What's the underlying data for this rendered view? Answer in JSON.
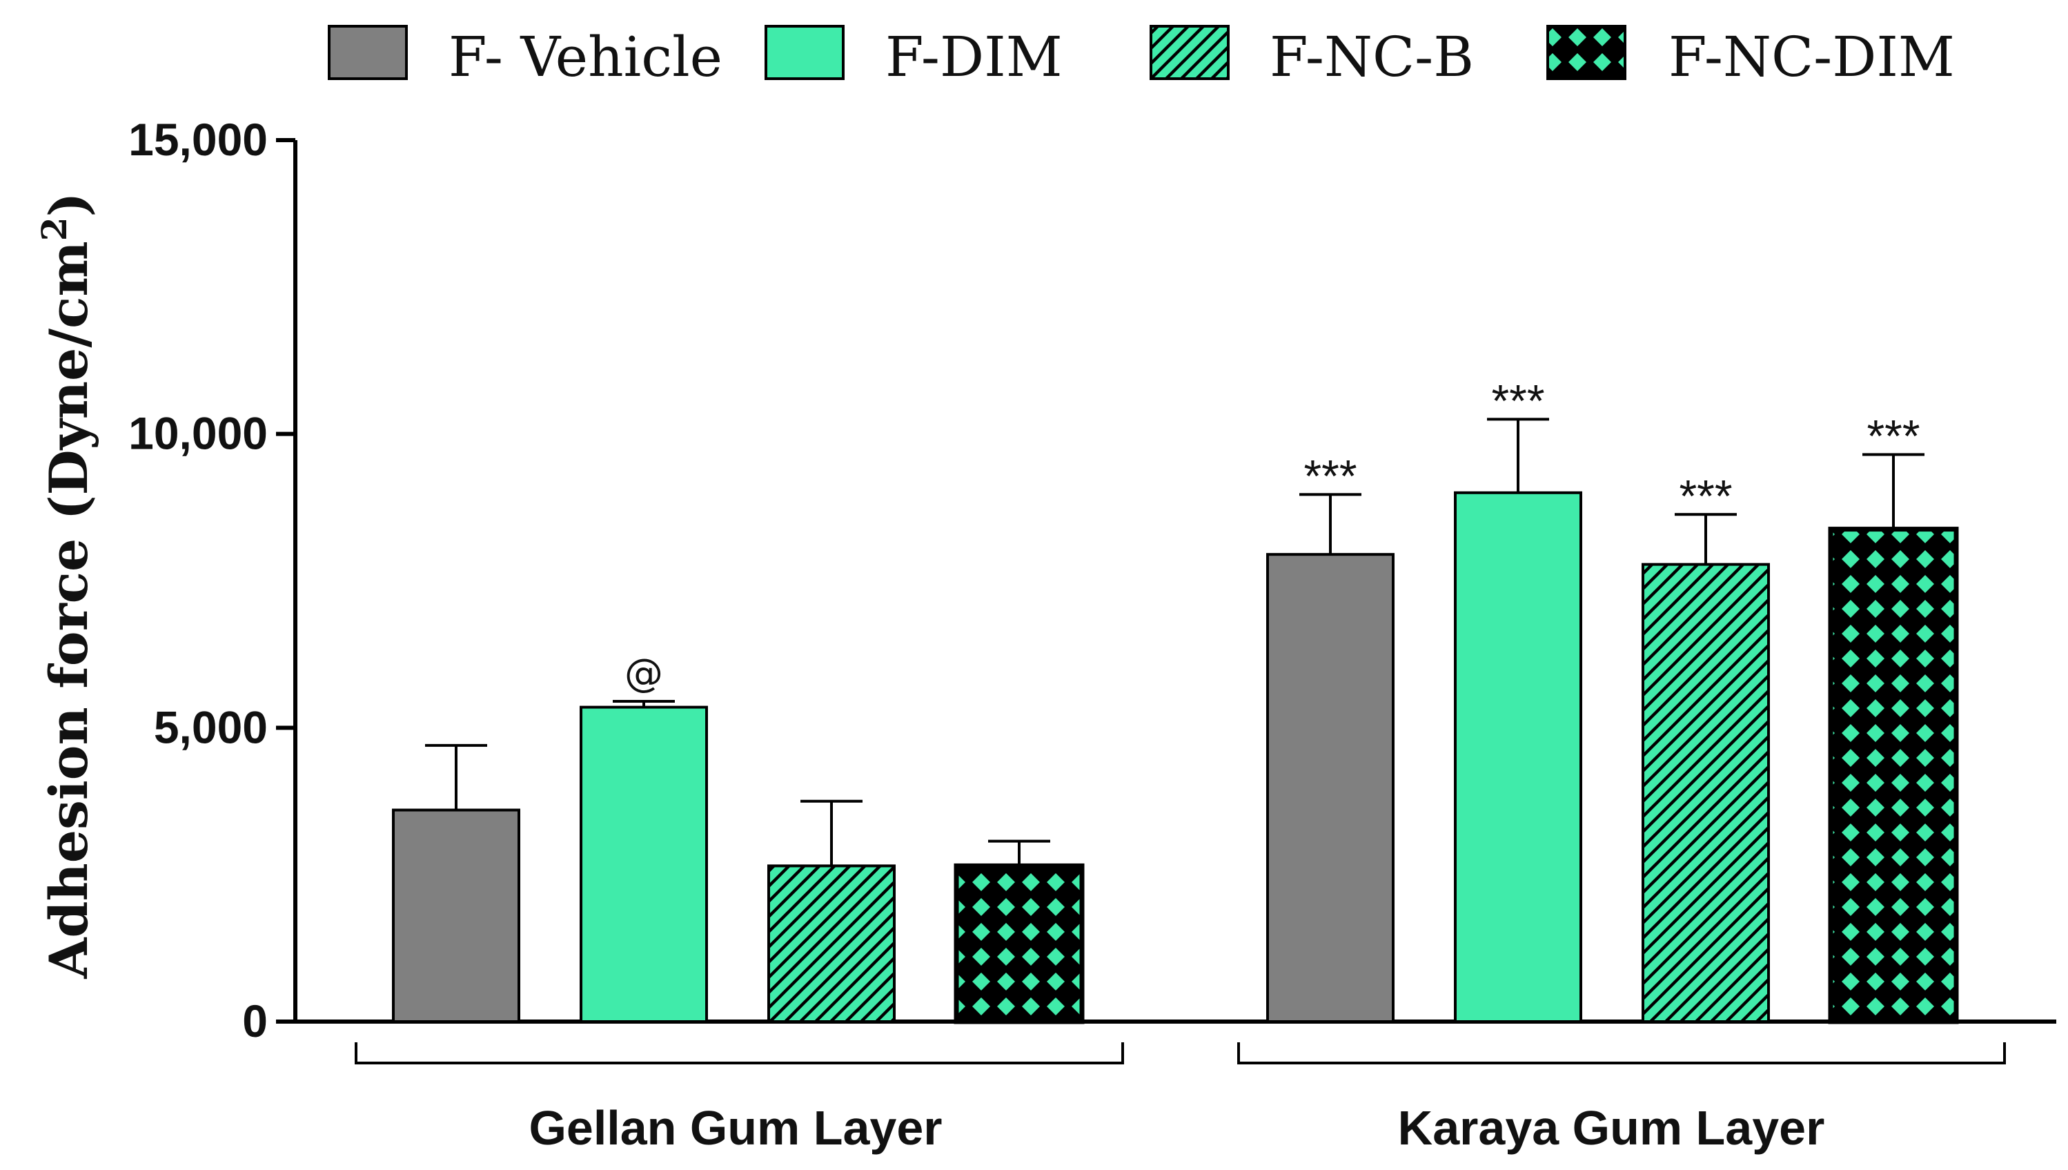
{
  "chart_data": {
    "type": "bar",
    "ylabel": "Adhesion force (Dyne/cm",
    "ylabel_sup": "2",
    "ylabel_close": ")",
    "ylim": [
      0,
      15000
    ],
    "yticks": [
      0,
      5000,
      10000,
      15000
    ],
    "ytick_labels": [
      "0",
      "5,000",
      "10,000",
      "15,000"
    ],
    "categories": [
      "Gellan Gum Layer",
      "Karaya Gum Layer"
    ],
    "series": [
      {
        "name": "F- Vehicle",
        "pattern": "solid-gray",
        "values": [
          3600,
          7950
        ],
        "errors": [
          1100,
          1020
        ],
        "annotations": [
          "",
          "***"
        ]
      },
      {
        "name": "F-DIM",
        "pattern": "solid-green",
        "values": [
          5350,
          9000
        ],
        "errors": [
          100,
          1250
        ],
        "annotations": [
          "@",
          "***"
        ]
      },
      {
        "name": "F-NC-B",
        "pattern": "hatch-green",
        "values": [
          2650,
          7780
        ],
        "errors": [
          1100,
          850
        ],
        "annotations": [
          "",
          "***"
        ]
      },
      {
        "name": "F-NC-DIM",
        "pattern": "checker-green",
        "values": [
          2650,
          8380
        ],
        "errors": [
          420,
          1270
        ],
        "annotations": [
          "",
          "***"
        ]
      }
    ],
    "legend_position": "top",
    "colors": {
      "gray": "#808080",
      "green": "#40EBAA",
      "black": "#000000"
    }
  }
}
